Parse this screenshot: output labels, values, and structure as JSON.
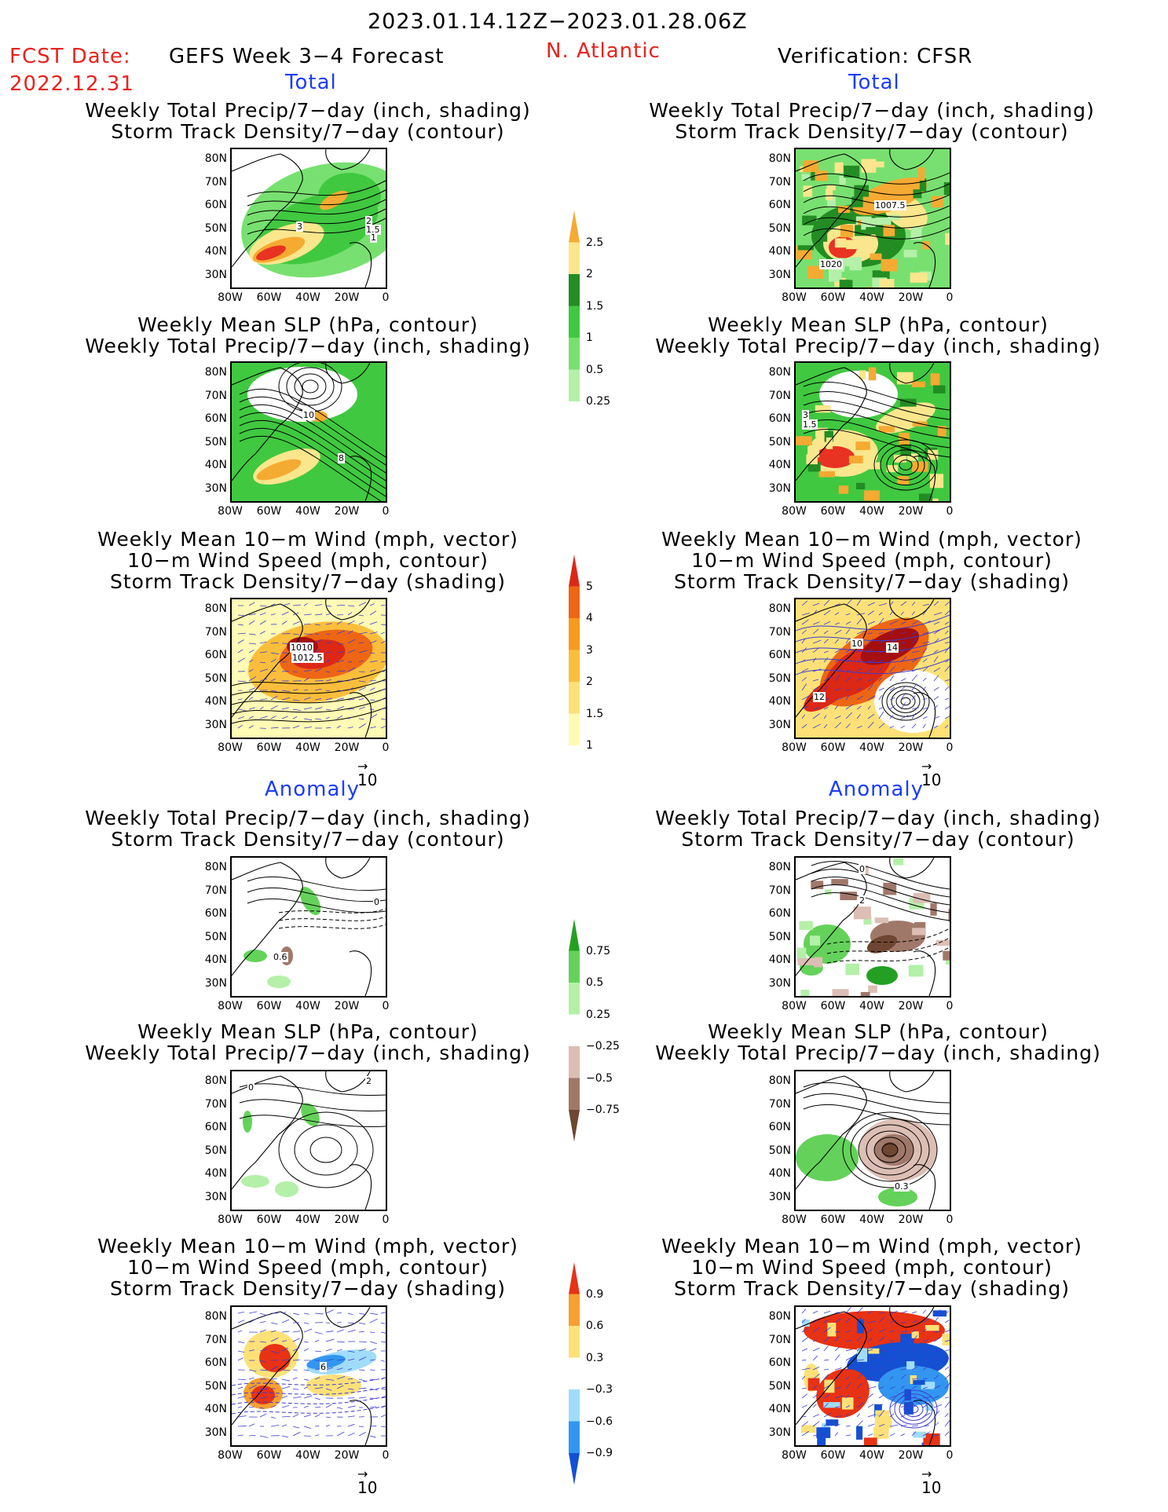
{
  "header": {
    "period": "2023.01.14.12Z−2023.01.28.06Z",
    "fcst_label": "FCST Date:",
    "fcst_date": "2022.12.31",
    "model": "GEFS Week 3−4 Forecast",
    "region": "N. Atlantic",
    "verification": "Verification: CFSR"
  },
  "sections": {
    "total_left": "Total",
    "total_right": "Total",
    "anomaly_left": "Anomaly",
    "anomaly_right": "Anomaly"
  },
  "titles": {
    "precip_storm": [
      "Weekly Total Precip/7−day (inch, shading)",
      "Storm Track Density/7−day (contour)"
    ],
    "slp_precip": [
      "Weekly Mean SLP (hPa, contour)",
      "Weekly Total Precip/7−day (inch, shading)"
    ],
    "wind_storm": [
      "Weekly Mean 10−m Wind (mph, vector)",
      "10−m Wind Speed (mph, contour)",
      "Storm Track Density/7−day (shading)"
    ]
  },
  "axes": {
    "lat_ticks": [
      "80N",
      "70N",
      "60N",
      "50N",
      "40N",
      "30N"
    ],
    "lon_ticks": [
      "80W",
      "60W",
      "40W",
      "20W",
      "0"
    ],
    "vector_ref": "10"
  },
  "contour_labels": {
    "p1": [
      "3",
      "2",
      "1.5",
      "1"
    ],
    "p2": [
      "1007.5",
      "1020"
    ],
    "p3": [
      "10",
      "8",
      "6",
      "8"
    ],
    "p4": [
      "3",
      "1.5"
    ],
    "p5": [
      "1010",
      "1012.5"
    ],
    "p6": [
      "10",
      "14",
      "12"
    ],
    "p7": [
      "0.6",
      "0"
    ],
    "p8": [
      "0",
      "2"
    ],
    "p9": [
      "0",
      "2"
    ],
    "p10": [
      "0.3",
      "−0.3",
      "−0.9",
      "−0.9",
      "0.3"
    ],
    "p11": [
      "6"
    ],
    "p12": [
      "0"
    ]
  },
  "colorbars": {
    "precip_total": [
      "0.25",
      "0.5",
      "1",
      "1.5",
      "2",
      "2.5"
    ],
    "storm_total": [
      "1",
      "1.5",
      "2",
      "3",
      "4",
      "5"
    ],
    "precip_anom": [
      "−0.75",
      "−0.5",
      "−0.25",
      "0.25",
      "0.5",
      "0.75"
    ],
    "storm_anom": [
      "−0.9",
      "−0.6",
      "−0.3",
      "0.3",
      "0.6",
      "0.9"
    ]
  },
  "colors": {
    "precip": [
      "#b4f0a8",
      "#78e070",
      "#40c840",
      "#238c23",
      "#fae68c",
      "#f5aa32",
      "#e83222"
    ],
    "storm": [
      "#fffab4",
      "#fde178",
      "#fbbe3c",
      "#f79a1e",
      "#ee6614",
      "#dc2814",
      "#a50f0f"
    ],
    "precip_anom": [
      "#6e4632",
      "#a0786a",
      "#dcbeb4",
      "#ffffff",
      "#b4f0a8",
      "#64d25a",
      "#23a023"
    ],
    "storm_anom": [
      "#1450d2",
      "#3296f0",
      "#a0dcfa",
      "#ffffff",
      "#fde178",
      "#f5a032",
      "#e83214"
    ],
    "title_red": "#e8231c",
    "title_blue": "#1a3cff"
  },
  "chart_data": [
    {
      "type": "heatmap",
      "panel": "forecast-total-precip-storm",
      "title": "Weekly Total Precip/7-day (inch, shading) / Storm Track Density/7-day (contour)"
    },
    {
      "type": "heatmap",
      "panel": "verification-total-precip-storm",
      "title": "Weekly Total Precip/7-day (inch, shading) / Storm Track Density/7-day (contour)"
    },
    {
      "type": "heatmap",
      "panel": "forecast-total-slp-precip",
      "title": "Weekly Mean SLP (hPa, contour) / Weekly Total Precip/7-day (inch, shading)"
    },
    {
      "type": "heatmap",
      "panel": "verification-total-slp-precip",
      "title": "Weekly Mean SLP (hPa, contour) / Weekly Total Precip/7-day (inch, shading)"
    },
    {
      "type": "heatmap",
      "panel": "forecast-total-wind-storm",
      "title": "Weekly Mean 10-m Wind / 10-m Wind Speed / Storm Track Density"
    },
    {
      "type": "heatmap",
      "panel": "verification-total-wind-storm",
      "title": "Weekly Mean 10-m Wind / 10-m Wind Speed / Storm Track Density"
    },
    {
      "type": "heatmap",
      "panel": "forecast-anomaly-precip-storm",
      "title": "Weekly Total Precip/7-day (inch, shading) / Storm Track Density/7-day (contour)"
    },
    {
      "type": "heatmap",
      "panel": "verification-anomaly-precip-storm",
      "title": "Weekly Total Precip/7-day (inch, shading) / Storm Track Density/7-day (contour)"
    },
    {
      "type": "heatmap",
      "panel": "forecast-anomaly-slp-precip",
      "title": "Weekly Mean SLP (hPa, contour) / Weekly Total Precip/7-day (inch, shading)"
    },
    {
      "type": "heatmap",
      "panel": "verification-anomaly-slp-precip",
      "title": "Weekly Mean SLP (hPa, contour) / Weekly Total Precip/7-day (inch, shading)"
    },
    {
      "type": "heatmap",
      "panel": "forecast-anomaly-wind-storm",
      "title": "Weekly Mean 10-m Wind / 10-m Wind Speed / Storm Track Density"
    },
    {
      "type": "heatmap",
      "panel": "verification-anomaly-wind-storm",
      "title": "Weekly Mean 10-m Wind / 10-m Wind Speed / Storm Track Density"
    }
  ]
}
